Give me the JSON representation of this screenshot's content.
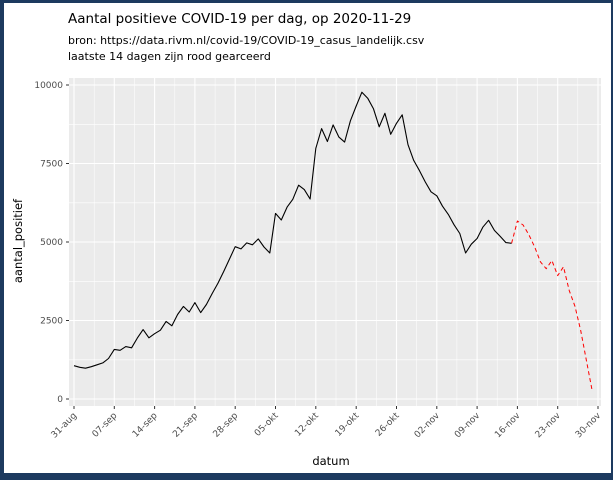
{
  "chart_data": {
    "type": "line",
    "title": "Aantal positieve COVID-19 per dag, op 2020-11-29",
    "subtitle_line1": "bron: https://data.rivm.nl/covid-19/COVID-19_casus_landelijk.csv",
    "subtitle_line2": "laatste 14 dagen zijn rood gearceerd",
    "xlabel": "datum",
    "ylabel": "aantal_positief",
    "x_start_date": "2020-08-31",
    "x_end_date": "2020-11-29",
    "x_tick_labels": [
      "31-aug",
      "07-sep",
      "14-sep",
      "21-sep",
      "28-sep",
      "05-okt",
      "12-okt",
      "19-okt",
      "26-okt",
      "02-nov",
      "09-nov",
      "16-nov",
      "23-nov",
      "30-nov"
    ],
    "y_ticks": [
      0,
      2500,
      5000,
      7500,
      10000
    ],
    "y_minor_ticks": [
      1250,
      3750,
      6250,
      8750
    ],
    "ylim": [
      0,
      10000
    ],
    "grid": "on",
    "legend_position": "none",
    "values": [
      1060,
      1010,
      980,
      1030,
      1090,
      1150,
      1290,
      1580,
      1550,
      1670,
      1630,
      1940,
      2210,
      1950,
      2080,
      2190,
      2470,
      2330,
      2690,
      2950,
      2770,
      3070,
      2750,
      3010,
      3360,
      3690,
      4060,
      4460,
      4850,
      4780,
      4970,
      4910,
      5100,
      4840,
      4650,
      5910,
      5700,
      6110,
      6360,
      6810,
      6670,
      6370,
      7980,
      8610,
      8200,
      8730,
      8340,
      8180,
      8860,
      9330,
      9770,
      9580,
      9250,
      8670,
      9100,
      8430,
      8780,
      9050,
      8100,
      7600,
      7270,
      6910,
      6600,
      6470,
      6140,
      5880,
      5550,
      5270,
      4650,
      4930,
      5110,
      5470,
      5690,
      5370,
      5180,
      4980,
      4960,
      5670,
      5540,
      5230,
      4840,
      4370,
      4150,
      4410,
      3930,
      4210,
      3460,
      2950,
      2180,
      1210,
      260
    ],
    "red_from_index": 76,
    "highlighted_period_days": 14,
    "colors": {
      "line": "#000000",
      "highlight_line": "#ff0000",
      "panel_bg": "#ebebeb",
      "grid": "#ffffff",
      "tick_text": "#4d4d4d",
      "axis_tick": "#333333",
      "frame": "#1d3a5f"
    }
  }
}
